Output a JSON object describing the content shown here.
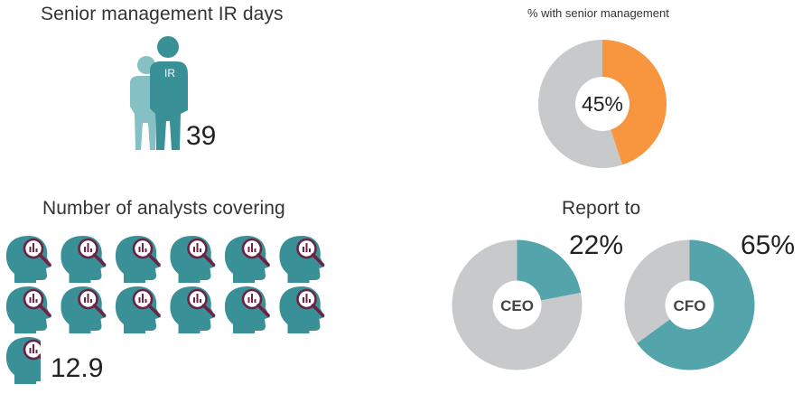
{
  "colors": {
    "teal": "#3a9097",
    "teal_light": "#84c0c4",
    "teal_donut": "#54a5ab",
    "orange": "#f7963e",
    "grey": "#c8c9cb",
    "magnifier": "#6b2344",
    "text": "#222222"
  },
  "panels": {
    "ir_days": {
      "title": "Senior management IR days",
      "value": "39",
      "badge": "IR"
    },
    "senior_pct": {
      "title": "% with senior management",
      "label": "45%"
    },
    "analysts": {
      "title": "Number of analysts covering",
      "value": "12.9",
      "icon_count": 12.9
    },
    "report_to": {
      "title": "Report to",
      "ceo": {
        "label": "CEO",
        "pct_label": "22%"
      },
      "cfo": {
        "label": "CFO",
        "pct_label": "65%"
      }
    }
  },
  "chart_data": [
    {
      "type": "pie",
      "title": "% with senior management",
      "slices": [
        {
          "name": "With senior management",
          "value": 45,
          "color": "#f7963e"
        },
        {
          "name": "Other",
          "value": 55,
          "color": "#c8c9cb"
        }
      ]
    },
    {
      "type": "pie",
      "title": "Report to",
      "slices": [
        {
          "name": "CEO",
          "value": 22,
          "color": "#54a5ab"
        },
        {
          "name": "Other",
          "value": 78,
          "color": "#c8c9cb"
        }
      ]
    },
    {
      "type": "pie",
      "title": "Report to",
      "slices": [
        {
          "name": "CFO",
          "value": 65,
          "color": "#54a5ab"
        },
        {
          "name": "Other",
          "value": 35,
          "color": "#c8c9cb"
        }
      ]
    },
    {
      "type": "pictograph",
      "title": "Number of analysts covering",
      "value": 12.9
    },
    {
      "type": "pictograph",
      "title": "Senior management IR days",
      "value": 39
    }
  ]
}
